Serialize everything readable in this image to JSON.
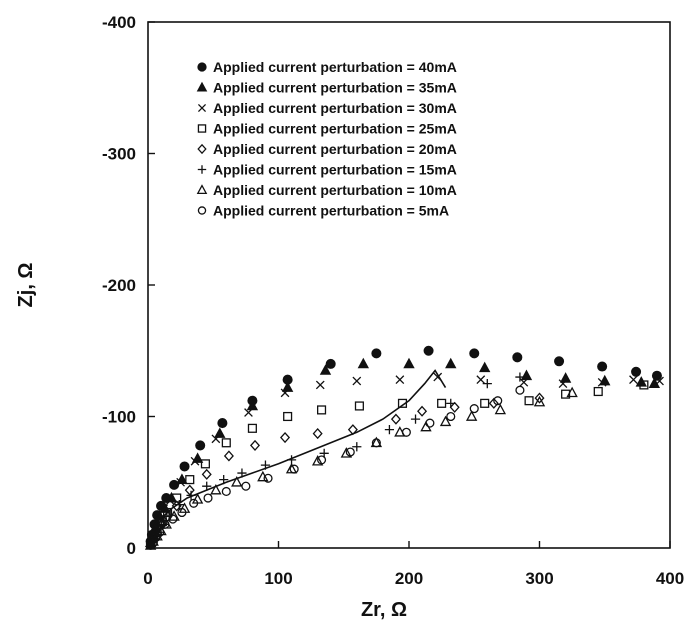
{
  "chart_data": {
    "type": "scatter",
    "title": "",
    "xlabel": "Zr, Ω",
    "ylabel": "Zj, Ω",
    "xlim": [
      0,
      400
    ],
    "ylim": [
      0,
      -400
    ],
    "y_axis_inverted": true,
    "xticks": [
      0,
      100,
      200,
      300,
      400
    ],
    "yticks": [
      0,
      -100,
      -200,
      -300,
      -400
    ],
    "grid": false,
    "legend_position": "top",
    "series": [
      {
        "name": "Applied current perturbation = 40mA",
        "marker": "filled-circle",
        "points": [
          [
            2,
            -5
          ],
          [
            3,
            -10
          ],
          [
            5,
            -18
          ],
          [
            7,
            -25
          ],
          [
            10,
            -32
          ],
          [
            14,
            -38
          ],
          [
            20,
            -48
          ],
          [
            28,
            -62
          ],
          [
            40,
            -78
          ],
          [
            57,
            -95
          ],
          [
            80,
            -112
          ],
          [
            107,
            -128
          ],
          [
            140,
            -140
          ],
          [
            175,
            -148
          ],
          [
            215,
            -150
          ],
          [
            250,
            -148
          ],
          [
            283,
            -145
          ],
          [
            315,
            -142
          ],
          [
            348,
            -138
          ],
          [
            374,
            -134
          ],
          [
            390,
            -131
          ]
        ]
      },
      {
        "name": "Applied current perturbation = 35mA",
        "marker": "filled-triangle",
        "points": [
          [
            2,
            -4
          ],
          [
            4,
            -10
          ],
          [
            6,
            -16
          ],
          [
            9,
            -24
          ],
          [
            13,
            -30
          ],
          [
            18,
            -38
          ],
          [
            26,
            -52
          ],
          [
            38,
            -68
          ],
          [
            55,
            -87
          ],
          [
            80,
            -108
          ],
          [
            107,
            -122
          ],
          [
            136,
            -135
          ],
          [
            165,
            -140
          ],
          [
            200,
            -140
          ],
          [
            232,
            -140
          ],
          [
            258,
            -137
          ],
          [
            290,
            -131
          ],
          [
            320,
            -129
          ],
          [
            350,
            -127
          ],
          [
            378,
            -126
          ],
          [
            388,
            -125
          ]
        ]
      },
      {
        "name": "Applied current perturbation = 30mA",
        "marker": "cross",
        "points": [
          [
            2,
            -3
          ],
          [
            4,
            -8
          ],
          [
            6,
            -14
          ],
          [
            9,
            -22
          ],
          [
            12,
            -30
          ],
          [
            17,
            -36
          ],
          [
            25,
            -50
          ],
          [
            36,
            -66
          ],
          [
            52,
            -83
          ],
          [
            77,
            -103
          ],
          [
            105,
            -118
          ],
          [
            132,
            -124
          ],
          [
            160,
            -127
          ],
          [
            193,
            -128
          ],
          [
            222,
            -130
          ],
          [
            255,
            -128
          ],
          [
            288,
            -126
          ],
          [
            318,
            -125
          ],
          [
            348,
            -126
          ],
          [
            372,
            -128
          ],
          [
            392,
            -127
          ]
        ]
      },
      {
        "name": "Applied current perturbation = 25mA",
        "marker": "square",
        "points": [
          [
            2,
            -3
          ],
          [
            4,
            -7
          ],
          [
            7,
            -12
          ],
          [
            11,
            -20
          ],
          [
            15,
            -27
          ],
          [
            22,
            -38
          ],
          [
            32,
            -52
          ],
          [
            44,
            -64
          ],
          [
            60,
            -80
          ],
          [
            80,
            -91
          ],
          [
            107,
            -100
          ],
          [
            133,
            -105
          ],
          [
            162,
            -108
          ],
          [
            195,
            -110
          ],
          [
            225,
            -110
          ],
          [
            258,
            -110
          ],
          [
            292,
            -112
          ],
          [
            320,
            -117
          ],
          [
            345,
            -119
          ],
          [
            380,
            -124
          ]
        ]
      },
      {
        "name": "Applied current perturbation = 20mA",
        "marker": "diamond",
        "points": [
          [
            2,
            -3
          ],
          [
            4,
            -6
          ],
          [
            7,
            -11
          ],
          [
            11,
            -18
          ],
          [
            15,
            -24
          ],
          [
            22,
            -32
          ],
          [
            32,
            -44
          ],
          [
            45,
            -56
          ],
          [
            62,
            -70
          ],
          [
            82,
            -78
          ],
          [
            105,
            -84
          ],
          [
            130,
            -87
          ],
          [
            157,
            -90
          ],
          [
            190,
            -98
          ],
          [
            210,
            -104
          ],
          [
            235,
            -107
          ],
          [
            265,
            -110
          ],
          [
            300,
            -114
          ]
        ]
      },
      {
        "name": "Applied current perturbation = 15mA",
        "marker": "plus",
        "points": [
          [
            2,
            -3
          ],
          [
            5,
            -7
          ],
          [
            8,
            -12
          ],
          [
            12,
            -18
          ],
          [
            17,
            -25
          ],
          [
            24,
            -33
          ],
          [
            33,
            -40
          ],
          [
            45,
            -47
          ],
          [
            58,
            -52
          ],
          [
            72,
            -57
          ],
          [
            90,
            -63
          ],
          [
            110,
            -67
          ],
          [
            135,
            -72
          ],
          [
            160,
            -77
          ],
          [
            185,
            -90
          ],
          [
            205,
            -98
          ],
          [
            232,
            -110
          ],
          [
            260,
            -125
          ],
          [
            285,
            -130
          ]
        ]
      },
      {
        "name": "Applied current perturbation = 10mA",
        "marker": "triangle",
        "points": [
          [
            2,
            -2
          ],
          [
            4,
            -5
          ],
          [
            7,
            -9
          ],
          [
            10,
            -13
          ],
          [
            14,
            -18
          ],
          [
            20,
            -24
          ],
          [
            28,
            -30
          ],
          [
            38,
            -37
          ],
          [
            52,
            -44
          ],
          [
            68,
            -50
          ],
          [
            88,
            -54
          ],
          [
            110,
            -60
          ],
          [
            130,
            -66
          ],
          [
            152,
            -72
          ],
          [
            175,
            -80
          ],
          [
            193,
            -88
          ],
          [
            213,
            -92
          ],
          [
            228,
            -96
          ],
          [
            248,
            -100
          ],
          [
            270,
            -105
          ],
          [
            300,
            -111
          ],
          [
            325,
            -118
          ]
        ]
      },
      {
        "name": "Applied current perturbation = 5mA",
        "marker": "circle",
        "points": [
          [
            2,
            -2
          ],
          [
            4,
            -4
          ],
          [
            6,
            -8
          ],
          [
            9,
            -12
          ],
          [
            13,
            -18
          ],
          [
            19,
            -22
          ],
          [
            26,
            -27
          ],
          [
            35,
            -34
          ],
          [
            46,
            -38
          ],
          [
            60,
            -43
          ],
          [
            75,
            -47
          ],
          [
            92,
            -53
          ],
          [
            112,
            -60
          ],
          [
            133,
            -67
          ],
          [
            155,
            -73
          ],
          [
            175,
            -80
          ],
          [
            198,
            -88
          ],
          [
            216,
            -95
          ],
          [
            232,
            -100
          ],
          [
            250,
            -106
          ],
          [
            268,
            -112
          ],
          [
            285,
            -120
          ]
        ]
      }
    ],
    "fit_line": {
      "points": [
        [
          0,
          0
        ],
        [
          5,
          -12
        ],
        [
          10,
          -22
        ],
        [
          18,
          -30
        ],
        [
          30,
          -38
        ],
        [
          45,
          -44
        ],
        [
          60,
          -50
        ],
        [
          80,
          -57
        ],
        [
          100,
          -64
        ],
        [
          120,
          -72
        ],
        [
          140,
          -80
        ],
        [
          160,
          -88
        ],
        [
          180,
          -98
        ],
        [
          200,
          -112
        ],
        [
          212,
          -125
        ],
        [
          220,
          -135
        ],
        [
          228,
          -122
        ]
      ]
    }
  }
}
